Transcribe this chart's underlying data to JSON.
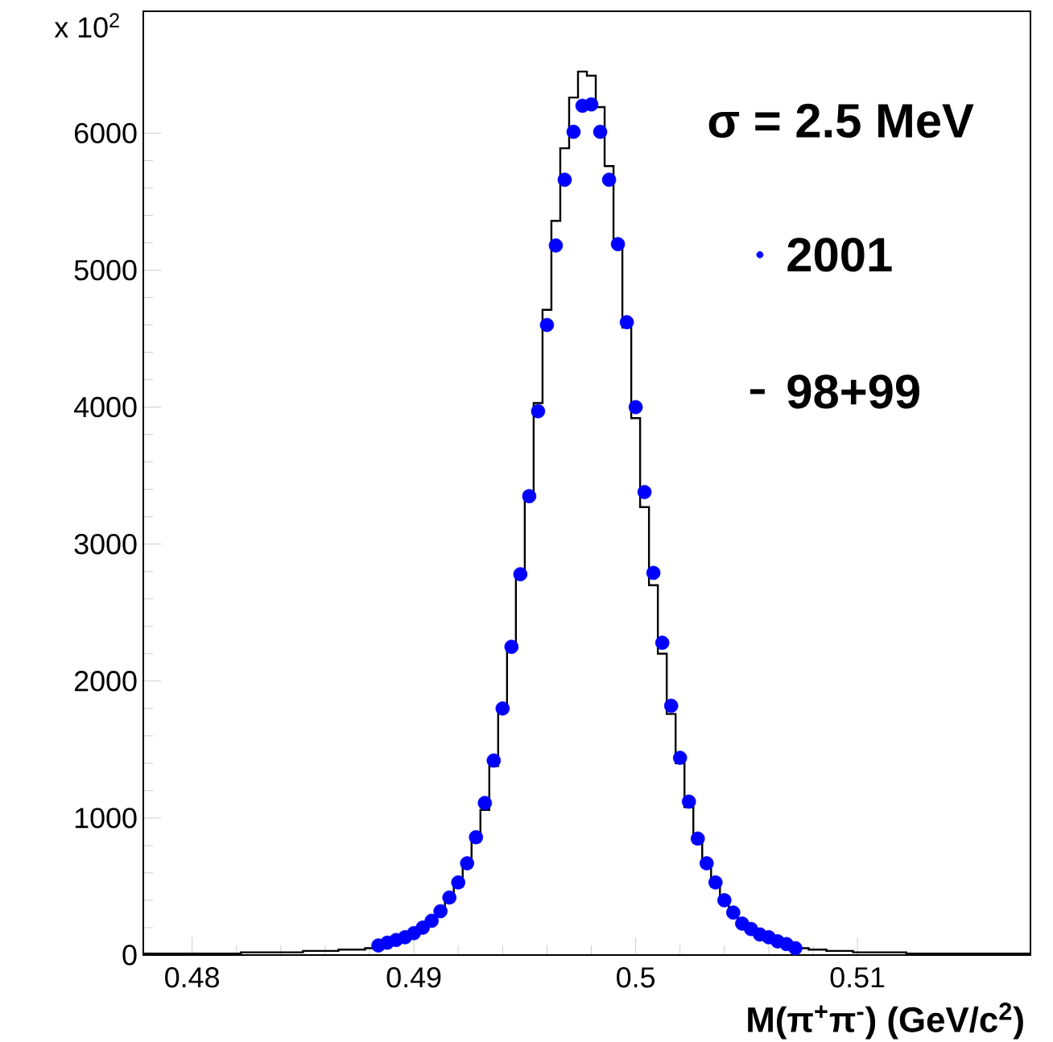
{
  "chart_data": {
    "type": "histogram",
    "xlabel": "M(π$^{+}$π$^{-}$) (GeV/c$^{2}$)",
    "annotations": [
      "σ = 2.5 MeV",
      "x 10$^{2}$"
    ],
    "bins": [
      0.4778,
      0.4782,
      0.4786,
      0.479,
      0.4794,
      0.4798,
      0.4802,
      0.4806,
      0.481,
      0.4814,
      0.4818,
      0.4822,
      0.4826,
      0.483,
      0.4834,
      0.4838,
      0.4842,
      0.4846,
      0.485,
      0.4854,
      0.4858,
      0.4862,
      0.4866,
      0.487,
      0.4874,
      0.4878,
      0.4882,
      0.4886,
      0.489,
      0.4894,
      0.4898,
      0.4902,
      0.4906,
      0.491,
      0.4914,
      0.4918,
      0.4922,
      0.4926,
      0.493,
      0.4934,
      0.4938,
      0.4942,
      0.4946,
      0.495,
      0.4954,
      0.4958,
      0.4962,
      0.4966,
      0.497,
      0.4974,
      0.4978,
      0.4982,
      0.4986,
      0.499,
      0.4994,
      0.4998,
      0.5002,
      0.5006,
      0.501,
      0.5014,
      0.5018,
      0.5022,
      0.5026,
      0.503,
      0.5034,
      0.5038,
      0.5042,
      0.5046,
      0.505,
      0.5054,
      0.5058,
      0.5062,
      0.5066,
      0.507,
      0.5074,
      0.5078,
      0.5082,
      0.5086,
      0.509,
      0.5094,
      0.5098,
      0.5102,
      0.5106,
      0.511,
      0.5114,
      0.5118,
      0.5122,
      0.5126,
      0.513,
      0.5134,
      0.5138,
      0.5142,
      0.5146,
      0.515,
      0.5154,
      0.5158,
      0.5162,
      0.5166,
      0.517,
      0.5174,
      0.5178
    ],
    "series": [
      {
        "name": "2001",
        "type": "scatter",
        "color": "#0000ff",
        "marker": "circle",
        "x": [
          0.4884,
          0.4888,
          0.4892,
          0.4896,
          0.49,
          0.4904,
          0.4908,
          0.4912,
          0.4916,
          0.492,
          0.4924,
          0.4928,
          0.4932,
          0.4936,
          0.494,
          0.4944,
          0.4948,
          0.4952,
          0.4956,
          0.496,
          0.4964,
          0.4968,
          0.4972,
          0.4976,
          0.498,
          0.4984,
          0.4988,
          0.4992,
          0.4996,
          0.5,
          0.5004,
          0.5008,
          0.5012,
          0.5016,
          0.502,
          0.5024,
          0.5028,
          0.5032,
          0.5036,
          0.504,
          0.5044,
          0.5048,
          0.5052,
          0.5056,
          0.506,
          0.5064,
          0.5068,
          0.5072
        ],
        "values": [
          70,
          90,
          110,
          130,
          160,
          200,
          250,
          320,
          420,
          530,
          670,
          860,
          1110,
          1420,
          1800,
          2250,
          2780,
          3350,
          3970,
          4600,
          5180,
          5660,
          6010,
          6200,
          6210,
          6010,
          5660,
          5190,
          4620,
          4000,
          3380,
          2790,
          2280,
          1820,
          1440,
          1120,
          850,
          670,
          530,
          400,
          310,
          230,
          190,
          150,
          130,
          100,
          80,
          50
        ]
      },
      {
        "name": "98+99",
        "color": "#000000",
        "values": [
          10,
          10,
          10,
          10,
          10,
          10,
          10,
          10,
          10,
          10,
          10,
          20,
          20,
          20,
          20,
          20,
          20,
          20,
          30,
          30,
          30,
          30,
          40,
          40,
          40,
          50,
          60,
          80,
          100,
          120,
          150,
          180,
          230,
          300,
          390,
          500,
          640,
          830,
          1060,
          1380,
          1780,
          2260,
          2800,
          3380,
          4030,
          4710,
          5360,
          5890,
          6260,
          6450,
          6420,
          6190,
          5760,
          5200,
          4580,
          3920,
          3270,
          2700,
          2200,
          1760,
          1400,
          1080,
          820,
          640,
          500,
          380,
          290,
          220,
          180,
          140,
          110,
          90,
          70,
          60,
          50,
          40,
          40,
          30,
          30,
          30,
          20,
          20,
          20,
          20,
          20,
          20,
          10,
          10,
          10,
          10,
          10,
          10,
          10,
          10,
          10,
          10,
          10,
          10,
          10,
          10
        ]
      }
    ],
    "xlim": [
      0.4778,
      0.5178
    ],
    "ylim": [
      0,
      6890
    ],
    "xticks": [
      0.48,
      0.49,
      0.5,
      0.51
    ],
    "yticks": [
      0,
      1000,
      2000,
      3000,
      4000,
      5000,
      6000
    ],
    "legend": "top right"
  }
}
